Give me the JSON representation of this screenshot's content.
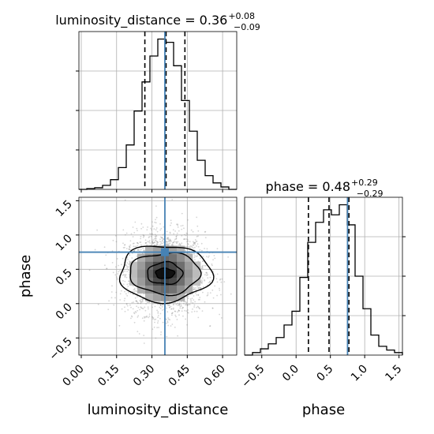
{
  "colors": {
    "truth": "#4682b4",
    "hist": "#000000",
    "grid": "#b0b0b0",
    "quantile": "#000000"
  },
  "chart_data": {
    "type": "corner",
    "parameters": [
      {
        "name": "luminosity_distance",
        "axis_label": "luminosity_distance",
        "title": {
          "prefix": "luminosity_distance = 0.36",
          "plus": "+0.08",
          "minus": "−0.09"
        },
        "range": [
          -0.01,
          0.66
        ],
        "ticks": [
          0.0,
          0.15,
          0.3,
          0.45,
          0.6
        ],
        "tick_labels": [
          "0.00",
          "0.15",
          "0.30",
          "0.45",
          "0.60"
        ],
        "quantiles": [
          0.27,
          0.36,
          0.44
        ],
        "truth": 0.355,
        "hist_edges": [
          -0.01,
          0.0235,
          0.057,
          0.0905,
          0.124,
          0.1575,
          0.191,
          0.2245,
          0.258,
          0.2915,
          0.325,
          0.3585,
          0.392,
          0.4255,
          0.459,
          0.4925,
          0.526,
          0.5595,
          0.593,
          0.6265,
          0.66
        ],
        "hist_counts": [
          0,
          1,
          2,
          5,
          12,
          27,
          55,
          97,
          133,
          165,
          186,
          182,
          153,
          110,
          72,
          36,
          17,
          8,
          3,
          0
        ]
      },
      {
        "name": "phase",
        "axis_label": "phase",
        "title": {
          "prefix": "phase = 0.48",
          "plus": "+0.29",
          "minus": "−0.29"
        },
        "range": [
          -0.75,
          1.55
        ],
        "ticks": [
          -0.5,
          0.0,
          0.5,
          1.0,
          1.5
        ],
        "tick_labels": [
          "−0.5",
          "0.0",
          "0.5",
          "1.0",
          "1.5"
        ],
        "quantiles": [
          0.18,
          0.48,
          0.77
        ],
        "truth": 0.75,
        "hist_edges": [
          -0.75,
          -0.635,
          -0.52,
          -0.405,
          -0.29,
          -0.175,
          -0.06,
          0.055,
          0.17,
          0.285,
          0.4,
          0.515,
          0.63,
          0.745,
          0.86,
          0.975,
          1.09,
          1.205,
          1.32,
          1.435,
          1.55
        ],
        "hist_counts": [
          0,
          2,
          5,
          9,
          14,
          24,
          35,
          62,
          90,
          106,
          116,
          112,
          120,
          104,
          63,
          37,
          16,
          7,
          4,
          2
        ]
      }
    ],
    "joint": {
      "x_param": "luminosity_distance",
      "y_param": "phase",
      "center": [
        0.355,
        0.44
      ],
      "truth_point": [
        0.355,
        0.75
      ],
      "contour_levels": [
        {
          "sigma_x": 0.04,
          "sigma_y": 0.075
        },
        {
          "sigma_x": 0.075,
          "sigma_y": 0.16
        },
        {
          "sigma_x": 0.15,
          "sigma_y": 0.3
        },
        {
          "sigma_x": 0.195,
          "sigma_y": 0.41
        }
      ]
    }
  }
}
